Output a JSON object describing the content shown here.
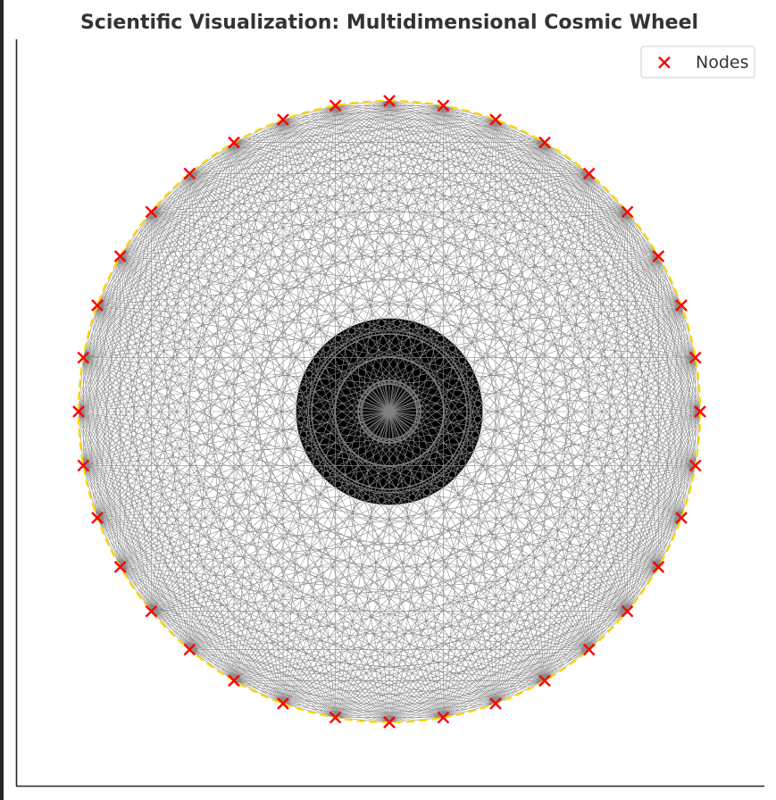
{
  "chart_data": {
    "type": "scatter",
    "title": "Scientific Visualization: Multidimensional Cosmic Wheel",
    "xlabel": "",
    "ylabel": "",
    "xlim": [
      -1.2,
      1.2
    ],
    "ylim": [
      -1.2,
      1.2
    ],
    "grid": false,
    "legend": {
      "position": "top-right",
      "entries": [
        "Nodes"
      ]
    },
    "series": [
      {
        "name": "Nodes",
        "marker": "x",
        "color": "#ff0000",
        "count": 36,
        "radius": 1.0
      }
    ],
    "annotations": {
      "boundary_circle": {
        "radius": 1.0,
        "style": "dashed",
        "color": "#ffd700"
      },
      "core_disk": {
        "radius": 0.3,
        "color": "#000000"
      },
      "edges": {
        "type": "all-pairs",
        "color": "#808080"
      },
      "inner_hub": {
        "spokes": 48,
        "radius": 0.1
      },
      "inner_rings": [
        0.1,
        0.175,
        0.25
      ]
    }
  },
  "colors": {
    "node": "#ff0000",
    "edge": "#808080",
    "boundary": "#ffd700",
    "core": "#000000",
    "axis": "#262626"
  }
}
